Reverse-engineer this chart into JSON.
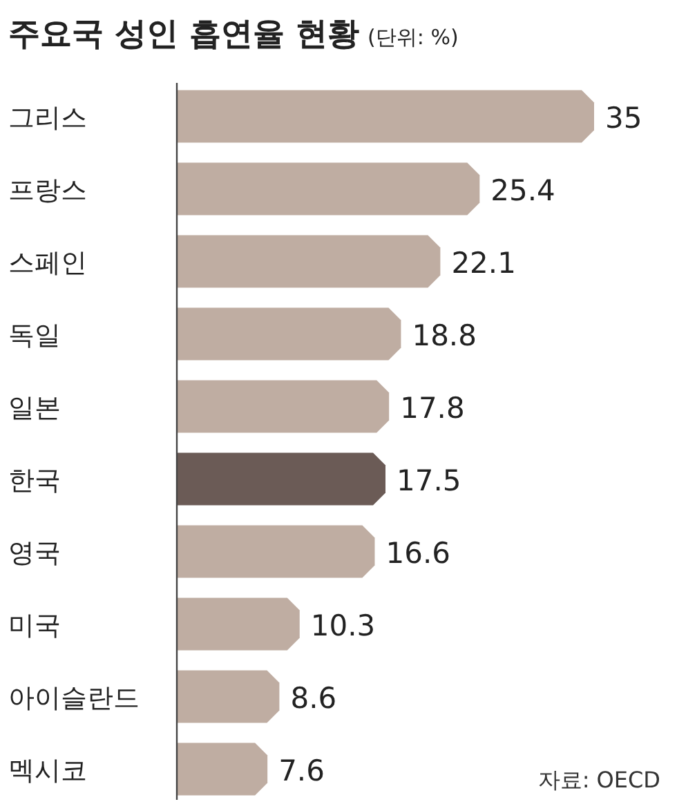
{
  "chart_data": {
    "type": "bar",
    "orientation": "horizontal",
    "title": "주요국 성인 흡연율 현황",
    "subtitle": "(단위: %)",
    "categories": [
      "그리스",
      "프랑스",
      "스페인",
      "독일",
      "일본",
      "한국",
      "영국",
      "미국",
      "아이슬란드",
      "멕시코"
    ],
    "values": [
      35,
      25.4,
      22.1,
      18.8,
      17.8,
      17.5,
      16.6,
      10.3,
      8.6,
      7.6
    ],
    "colors": [
      "#bfada2",
      "#bfada2",
      "#bfada2",
      "#bfada2",
      "#bfada2",
      "#6b5b56",
      "#bfada2",
      "#bfada2",
      "#bfada2",
      "#bfada2"
    ],
    "data_labels": true,
    "annotations": [
      "자료: OECD"
    ]
  }
}
